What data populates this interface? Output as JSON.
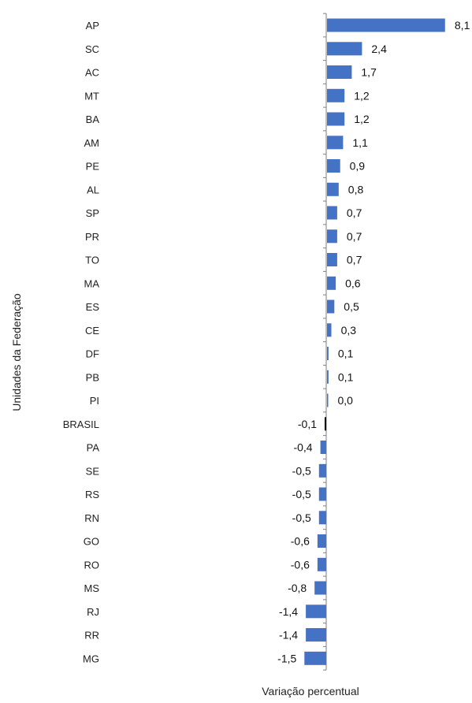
{
  "chart_data": {
    "type": "bar",
    "orientation": "horizontal",
    "xlabel": "Variação percentual",
    "ylabel": "Unidades da Federação",
    "categories": [
      "AP",
      "SC",
      "AC",
      "MT",
      "BA",
      "AM",
      "PE",
      "AL",
      "SP",
      "PR",
      "TO",
      "MA",
      "ES",
      "CE",
      "DF",
      "PB",
      "PI",
      "BRASIL",
      "PA",
      "SE",
      "RS",
      "RN",
      "GO",
      "RO",
      "MS",
      "RJ",
      "RR",
      "MG"
    ],
    "values": [
      8.1,
      2.4,
      1.7,
      1.2,
      1.2,
      1.1,
      0.9,
      0.8,
      0.7,
      0.7,
      0.7,
      0.6,
      0.5,
      0.3,
      0.1,
      0.1,
      0.0,
      -0.1,
      -0.4,
      -0.5,
      -0.5,
      -0.5,
      -0.6,
      -0.6,
      -0.8,
      -1.4,
      -1.4,
      -1.5
    ],
    "value_labels": [
      "8,1",
      "2,4",
      "1,7",
      "1,2",
      "1,2",
      "1,1",
      "0,9",
      "0,8",
      "0,7",
      "0,7",
      "0,7",
      "0,6",
      "0,5",
      "0,3",
      "0,1",
      "0,1",
      "0,0",
      "-0,1",
      "-0,4",
      "-0,5",
      "-0,5",
      "-0,5",
      "-0,6",
      "-0,6",
      "-0,8",
      "-1,4",
      "-1,4",
      "-1,5"
    ],
    "highlight_category": "BRASIL",
    "colors": {
      "bar": "#4472C4",
      "highlight": "#000000",
      "axis": "#7f7f7f"
    },
    "grid": false,
    "legend": false
  }
}
